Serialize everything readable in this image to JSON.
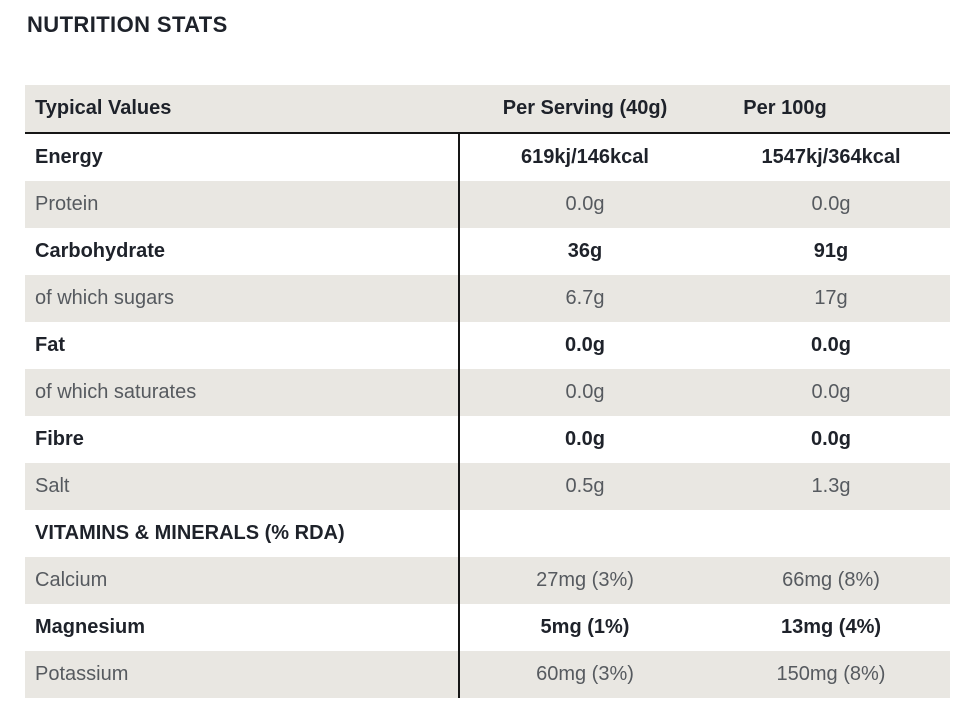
{
  "title": "NUTRITION STATS",
  "colors": {
    "row_shade": "#e9e7e2",
    "emphasis_text": "#1e222a",
    "regular_text": "#565a5f",
    "rule": "#161616",
    "background": "#ffffff"
  },
  "table": {
    "headers": [
      "Typical Values",
      "Per Serving (40g)",
      "Per 100g"
    ],
    "rows": [
      {
        "label": "Energy",
        "per_serving": "619kj/146kcal",
        "per_100g": "1547kj/364kcal",
        "emphasis": true
      },
      {
        "label": "Protein",
        "per_serving": "0.0g",
        "per_100g": "0.0g",
        "emphasis": false
      },
      {
        "label": "Carbohydrate",
        "per_serving": "36g",
        "per_100g": "91g",
        "emphasis": true
      },
      {
        "label": "of which sugars",
        "per_serving": "6.7g",
        "per_100g": "17g",
        "emphasis": false
      },
      {
        "label": "Fat",
        "per_serving": "0.0g",
        "per_100g": "0.0g",
        "emphasis": true
      },
      {
        "label": "of which saturates",
        "per_serving": "0.0g",
        "per_100g": "0.0g",
        "emphasis": false
      },
      {
        "label": "Fibre",
        "per_serving": "0.0g",
        "per_100g": "0.0g",
        "emphasis": true
      },
      {
        "label": "Salt",
        "per_serving": "0.5g",
        "per_100g": "1.3g",
        "emphasis": false
      },
      {
        "label": "VITAMINS & MINERALS (% RDA)",
        "per_serving": "",
        "per_100g": "",
        "emphasis": true
      },
      {
        "label": "Calcium",
        "per_serving": "27mg (3%)",
        "per_100g": "66mg (8%)",
        "emphasis": false
      },
      {
        "label": "Magnesium",
        "per_serving": "5mg (1%)",
        "per_100g": "13mg (4%)",
        "emphasis": true
      },
      {
        "label": "Potassium",
        "per_serving": "60mg (3%)",
        "per_100g": "150mg (8%)",
        "emphasis": false
      }
    ]
  }
}
